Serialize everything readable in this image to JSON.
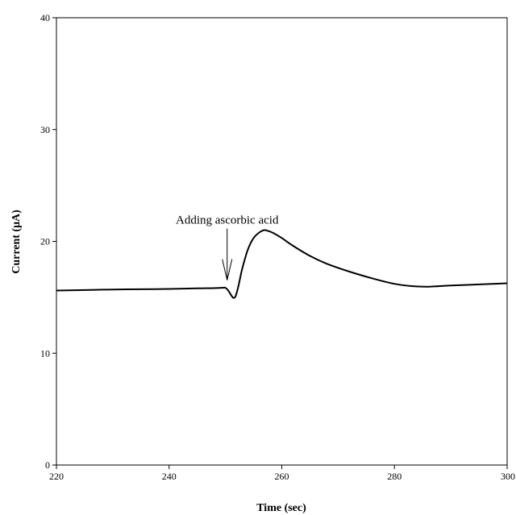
{
  "chart_data": {
    "type": "line",
    "title": "",
    "xlabel": "Time (sec)",
    "ylabel": "Current (μA)",
    "xlim": [
      220,
      300
    ],
    "ylim": [
      0,
      40
    ],
    "xticks": [
      220,
      240,
      260,
      280,
      300
    ],
    "yticks": [
      0,
      10,
      20,
      30,
      40
    ],
    "grid": false,
    "legend": "none",
    "line_color": "#000000",
    "series": [
      {
        "x": [
          220,
          225,
          230,
          235,
          240,
          245,
          248,
          249.5,
          250,
          250.5,
          251,
          251.4,
          251.8,
          252.3,
          253,
          254,
          255,
          256,
          256.8,
          257.5,
          258.5,
          260,
          262,
          265,
          268,
          272,
          276,
          280,
          283,
          286,
          290,
          295,
          300
        ],
        "y": [
          15.6,
          15.65,
          15.7,
          15.72,
          15.75,
          15.8,
          15.82,
          15.85,
          15.85,
          15.6,
          15.2,
          14.95,
          15.1,
          16.0,
          17.6,
          19.3,
          20.3,
          20.8,
          21.0,
          20.95,
          20.75,
          20.3,
          19.6,
          18.7,
          18.0,
          17.3,
          16.7,
          16.2,
          16.0,
          15.95,
          16.05,
          16.15,
          16.25
        ]
      }
    ],
    "annotations": [
      {
        "text": "Adding ascorbic acid",
        "x": 250.3,
        "y": 16.1
      }
    ]
  }
}
